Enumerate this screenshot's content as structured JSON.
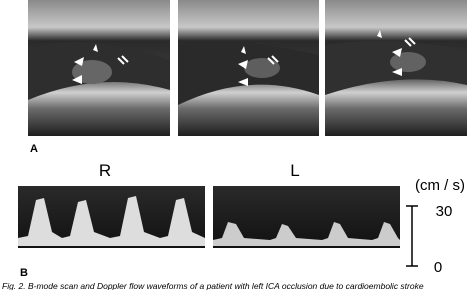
{
  "figure": {
    "panel_a": {
      "label": "A"
    },
    "panel_b": {
      "label": "B",
      "right_label": "R",
      "left_label": "L",
      "scale": {
        "unit": "(cm / s)",
        "top": "30",
        "bottom": "0"
      }
    },
    "caption": "Fig. 2. B-mode scan and Doppler flow waveforms of a patient with left ICA occlusion due to cardioembolic stroke"
  }
}
